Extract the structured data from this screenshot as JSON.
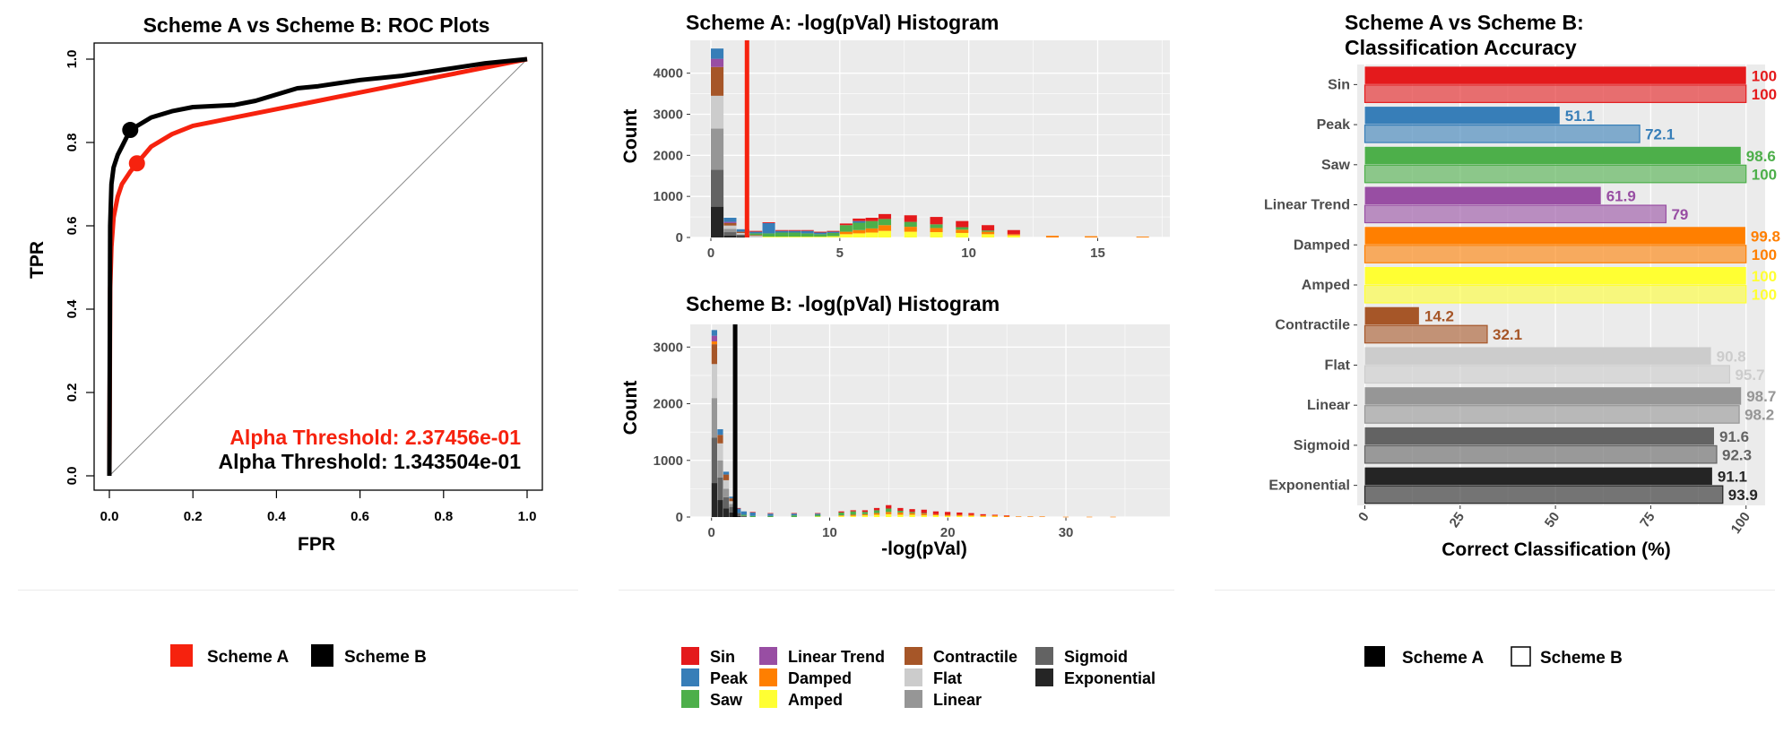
{
  "colors": {
    "scheme_a": "#f6220e",
    "scheme_b": "#000000",
    "panel_bg": "#ebebeb",
    "grid": "#ffffff"
  },
  "class_colors": {
    "Sin": "#e41a1c",
    "Peak": "#377eb8",
    "Saw": "#4daf4a",
    "Linear Trend": "#984ea3",
    "Damped": "#ff7f00",
    "Amped": "#ffff33",
    "Contractile": "#a65628",
    "Flat": "#cccccc",
    "Linear": "#969696",
    "Sigmoid": "#636363",
    "Exponential": "#252525"
  },
  "chart_data": [
    {
      "type": "line",
      "title": "Scheme A vs Scheme B: ROC Plots",
      "xlabel": "FPR",
      "ylabel": "TPR",
      "xlim": [
        0,
        1
      ],
      "ylim": [
        0,
        1
      ],
      "xticks": [
        "0.0",
        "0.2",
        "0.4",
        "0.6",
        "0.8",
        "1.0"
      ],
      "yticks": [
        "0.0",
        "0.2",
        "0.4",
        "0.6",
        "0.8",
        "1.0"
      ],
      "grid": false,
      "series": [
        {
          "name": "Scheme A",
          "color": "#f6220e",
          "x": [
            0,
            0.002,
            0.005,
            0.01,
            0.02,
            0.03,
            0.05,
            0.066,
            0.1,
            0.15,
            0.2,
            0.25,
            0.3,
            0.4,
            0.5,
            0.6,
            0.7,
            0.8,
            0.9,
            1.0
          ],
          "y": [
            0,
            0.45,
            0.55,
            0.62,
            0.67,
            0.7,
            0.73,
            0.75,
            0.79,
            0.82,
            0.84,
            0.85,
            0.86,
            0.88,
            0.9,
            0.92,
            0.94,
            0.96,
            0.98,
            1.0
          ],
          "marker": {
            "x": 0.066,
            "y": 0.75
          }
        },
        {
          "name": "Scheme B",
          "color": "#000000",
          "x": [
            0,
            0.002,
            0.005,
            0.01,
            0.02,
            0.03,
            0.05,
            0.1,
            0.15,
            0.2,
            0.3,
            0.35,
            0.4,
            0.45,
            0.5,
            0.6,
            0.7,
            0.8,
            0.9,
            1.0
          ],
          "y": [
            0,
            0.6,
            0.7,
            0.74,
            0.77,
            0.79,
            0.83,
            0.86,
            0.875,
            0.885,
            0.89,
            0.9,
            0.915,
            0.93,
            0.935,
            0.95,
            0.96,
            0.975,
            0.99,
            1.0
          ],
          "marker": {
            "x": 0.05,
            "y": 0.83
          }
        }
      ],
      "annotations": [
        {
          "text": "Alpha Threshold: 2.37456e-01",
          "color": "#f6220e"
        },
        {
          "text": "Alpha Threshold: 1.343504e-01",
          "color": "#000000"
        }
      ],
      "legend": {
        "placement": "bottom",
        "items": [
          "Scheme A",
          "Scheme B"
        ]
      }
    },
    {
      "type": "bar",
      "stacked": true,
      "title": "Scheme A: -log(pVal) Histogram",
      "xlabel": "",
      "ylabel": "Count",
      "xlim": [
        -0.8,
        17.8
      ],
      "ylim": [
        0,
        4800
      ],
      "xticks": [
        "0",
        "5",
        "10",
        "15"
      ],
      "yticks": [
        "0",
        "1000",
        "2000",
        "3000",
        "4000"
      ],
      "vline": {
        "x": 1.4,
        "color": "#f6220e"
      },
      "bin_width": 0.5,
      "bins": [
        {
          "x": 0.25,
          "counts": {
            "Exponential": 750,
            "Sigmoid": 900,
            "Linear": 1000,
            "Flat": 800,
            "Contractile": 700,
            "Linear Trend": 200,
            "Peak": 250,
            "Sin": 0
          }
        },
        {
          "x": 0.75,
          "counts": {
            "Exponential": 50,
            "Sigmoid": 80,
            "Linear": 80,
            "Flat": 80,
            "Contractile": 60,
            "Peak": 100,
            "Linear Trend": 30
          }
        },
        {
          "x": 1.25,
          "counts": {
            "Exponential": 30,
            "Sigmoid": 40,
            "Flat": 40,
            "Contractile": 30,
            "Peak": 60
          }
        },
        {
          "x": 1.75,
          "counts": {
            "Flat": 40,
            "Contractile": 20,
            "Peak": 40,
            "Saw": 40,
            "Sin": 20
          }
        },
        {
          "x": 2.25,
          "counts": {
            "Amped": 20,
            "Saw": 80,
            "Peak": 250,
            "Sin": 20
          }
        },
        {
          "x": 2.75,
          "counts": {
            "Amped": 20,
            "Saw": 100,
            "Peak": 40,
            "Sin": 20
          }
        },
        {
          "x": 3.25,
          "counts": {
            "Amped": 20,
            "Saw": 100,
            "Peak": 40,
            "Sin": 20
          }
        },
        {
          "x": 3.75,
          "counts": {
            "Amped": 20,
            "Saw": 80,
            "Peak": 60,
            "Sin": 20
          }
        },
        {
          "x": 4.25,
          "counts": {
            "Amped": 20,
            "Saw": 60,
            "Peak": 40,
            "Sin": 20
          }
        },
        {
          "x": 4.75,
          "counts": {
            "Amped": 30,
            "Saw": 80,
            "Peak": 30,
            "Sin": 20
          }
        },
        {
          "x": 5.25,
          "counts": {
            "Amped": 80,
            "Damped": 60,
            "Saw": 160,
            "Sin": 40
          }
        },
        {
          "x": 5.75,
          "counts": {
            "Amped": 100,
            "Damped": 80,
            "Saw": 180,
            "Peak": 40,
            "Sin": 60
          }
        },
        {
          "x": 6.25,
          "counts": {
            "Amped": 120,
            "Damped": 100,
            "Saw": 180,
            "Sin": 80
          }
        },
        {
          "x": 6.75,
          "counts": {
            "Amped": 160,
            "Damped": 140,
            "Saw": 150,
            "Sin": 120
          }
        },
        {
          "x": 7.75,
          "counts": {
            "Amped": 140,
            "Damped": 120,
            "Saw": 120,
            "Sin": 160
          }
        },
        {
          "x": 8.75,
          "counts": {
            "Amped": 130,
            "Damped": 100,
            "Saw": 90,
            "Sin": 180
          }
        },
        {
          "x": 9.75,
          "counts": {
            "Amped": 110,
            "Damped": 80,
            "Saw": 60,
            "Sin": 150
          }
        },
        {
          "x": 10.75,
          "counts": {
            "Amped": 80,
            "Damped": 60,
            "Saw": 30,
            "Sin": 130
          }
        },
        {
          "x": 11.75,
          "counts": {
            "Amped": 50,
            "Damped": 30,
            "Sin": 100
          }
        },
        {
          "x": 13.25,
          "counts": {
            "Damped": 40
          }
        },
        {
          "x": 14.75,
          "counts": {
            "Damped": 30
          }
        },
        {
          "x": 16.75,
          "counts": {
            "Damped": 20
          }
        }
      ]
    },
    {
      "type": "bar",
      "stacked": true,
      "title": "Scheme B: -log(pVal) Histogram",
      "xlabel": "-log(pVal)",
      "ylabel": "Count",
      "xlim": [
        -1.8,
        38.8
      ],
      "ylim": [
        0,
        3400
      ],
      "xticks": [
        "0",
        "10",
        "20",
        "30"
      ],
      "yticks": [
        "0",
        "1000",
        "2000",
        "3000"
      ],
      "vline": {
        "x": 2,
        "color": "#000000"
      },
      "bin_width": 0.5,
      "bins": [
        {
          "x": 0.25,
          "counts": {
            "Exponential": 600,
            "Sigmoid": 800,
            "Linear": 700,
            "Flat": 600,
            "Contractile": 350,
            "Damped": 50,
            "Linear Trend": 100,
            "Peak": 100
          }
        },
        {
          "x": 0.75,
          "counts": {
            "Exponential": 300,
            "Sigmoid": 400,
            "Linear": 300,
            "Flat": 300,
            "Contractile": 150,
            "Peak": 100
          }
        },
        {
          "x": 1.25,
          "counts": {
            "Exponential": 150,
            "Sigmoid": 200,
            "Linear": 150,
            "Flat": 150,
            "Contractile": 100,
            "Peak": 50
          }
        },
        {
          "x": 1.75,
          "counts": {
            "Exponential": 80,
            "Sigmoid": 100,
            "Linear": 50,
            "Flat": 50,
            "Contractile": 50,
            "Peak": 30
          }
        },
        {
          "x": 2.25,
          "counts": {
            "Exponential": 20,
            "Sigmoid": 50,
            "Peak": 80,
            "Sin": 10
          }
        },
        {
          "x": 2.75,
          "counts": {
            "Sigmoid": 20,
            "Peak": 60,
            "Saw": 20
          }
        },
        {
          "x": 3.5,
          "counts": {
            "Peak": 60,
            "Saw": 20,
            "Sin": 10
          }
        },
        {
          "x": 5,
          "counts": {
            "Peak": 40,
            "Saw": 20,
            "Sin": 10
          }
        },
        {
          "x": 7,
          "counts": {
            "Peak": 30,
            "Saw": 30,
            "Sin": 10
          }
        },
        {
          "x": 9,
          "counts": {
            "Peak": 20,
            "Saw": 30,
            "Amped": 10,
            "Sin": 10
          }
        },
        {
          "x": 11,
          "counts": {
            "Amped": 20,
            "Damped": 10,
            "Saw": 50,
            "Sin": 20
          }
        },
        {
          "x": 12,
          "counts": {
            "Amped": 20,
            "Damped": 20,
            "Saw": 60,
            "Sin": 20
          }
        },
        {
          "x": 13,
          "counts": {
            "Amped": 30,
            "Damped": 20,
            "Saw": 40,
            "Sin": 30
          }
        },
        {
          "x": 14,
          "counts": {
            "Amped": 40,
            "Damped": 30,
            "Saw": 50,
            "Sin": 40
          }
        },
        {
          "x": 15,
          "counts": {
            "Amped": 50,
            "Damped": 40,
            "Saw": 60,
            "Sin": 60
          }
        },
        {
          "x": 16,
          "counts": {
            "Amped": 40,
            "Damped": 40,
            "Saw": 30,
            "Sin": 50
          }
        },
        {
          "x": 17,
          "counts": {
            "Amped": 40,
            "Damped": 30,
            "Saw": 20,
            "Sin": 50
          }
        },
        {
          "x": 18,
          "counts": {
            "Amped": 30,
            "Damped": 30,
            "Saw": 10,
            "Sin": 60
          }
        },
        {
          "x": 19,
          "counts": {
            "Amped": 30,
            "Damped": 20,
            "Sin": 50
          }
        },
        {
          "x": 20,
          "counts": {
            "Amped": 20,
            "Damped": 20,
            "Sin": 50
          }
        },
        {
          "x": 21,
          "counts": {
            "Amped": 20,
            "Damped": 20,
            "Sin": 40
          }
        },
        {
          "x": 22,
          "counts": {
            "Amped": 20,
            "Damped": 20,
            "Sin": 30
          }
        },
        {
          "x": 23,
          "counts": {
            "Amped": 10,
            "Damped": 20,
            "Sin": 20
          }
        },
        {
          "x": 24,
          "counts": {
            "Amped": 10,
            "Damped": 20,
            "Sin": 10
          }
        },
        {
          "x": 25,
          "counts": {
            "Damped": 20,
            "Sin": 10
          }
        },
        {
          "x": 26,
          "counts": {
            "Damped": 10
          }
        },
        {
          "x": 27,
          "counts": {
            "Damped": 10
          }
        },
        {
          "x": 28,
          "counts": {
            "Damped": 10
          }
        },
        {
          "x": 30,
          "counts": {
            "Damped": 5
          }
        },
        {
          "x": 32,
          "counts": {
            "Damped": 5
          }
        },
        {
          "x": 34,
          "counts": {
            "Damped": 5
          }
        }
      ]
    },
    {
      "type": "bar",
      "orientation": "horizontal",
      "title": "Scheme A vs Scheme B:",
      "subtitle": "Classification Accuracy",
      "xlabel": "Correct Classification (%)",
      "ylabel": "",
      "xlim": [
        -2,
        105
      ],
      "xticks": [
        "0",
        "25",
        "50",
        "75",
        "100"
      ],
      "categories": [
        "Sin",
        "Peak",
        "Saw",
        "Linear Trend",
        "Damped",
        "Amped",
        "Contractile",
        "Flat",
        "Linear",
        "Sigmoid",
        "Exponential"
      ],
      "series": [
        {
          "name": "Scheme A",
          "values": [
            100,
            51.1,
            98.6,
            61.9,
            99.8,
            100,
            14.2,
            90.8,
            98.7,
            91.6,
            91.1
          ]
        },
        {
          "name": "Scheme B",
          "values": [
            100,
            72.1,
            100,
            79,
            100,
            100,
            32.1,
            95.7,
            98.2,
            92.3,
            93.9
          ]
        }
      ],
      "value_labels": {
        "Scheme A": [
          "100",
          "51.1",
          "98.6",
          "61.9",
          "99.8",
          "100",
          "14.2",
          "90.8",
          "98.7",
          "91.6",
          "91.1"
        ],
        "Scheme B": [
          "100",
          "72.1",
          "100",
          "79",
          "100",
          "100",
          "32.1",
          "95.7",
          "98.2",
          "92.3",
          "93.9"
        ]
      },
      "legend": {
        "placement": "bottom",
        "items": [
          "Scheme A",
          "Scheme B"
        ]
      }
    }
  ],
  "histogram_legend": {
    "placement": "bottom",
    "items": [
      "Sin",
      "Peak",
      "Saw",
      "Linear Trend",
      "Damped",
      "Amped",
      "Contractile",
      "Flat",
      "Linear",
      "Sigmoid",
      "Exponential"
    ]
  }
}
